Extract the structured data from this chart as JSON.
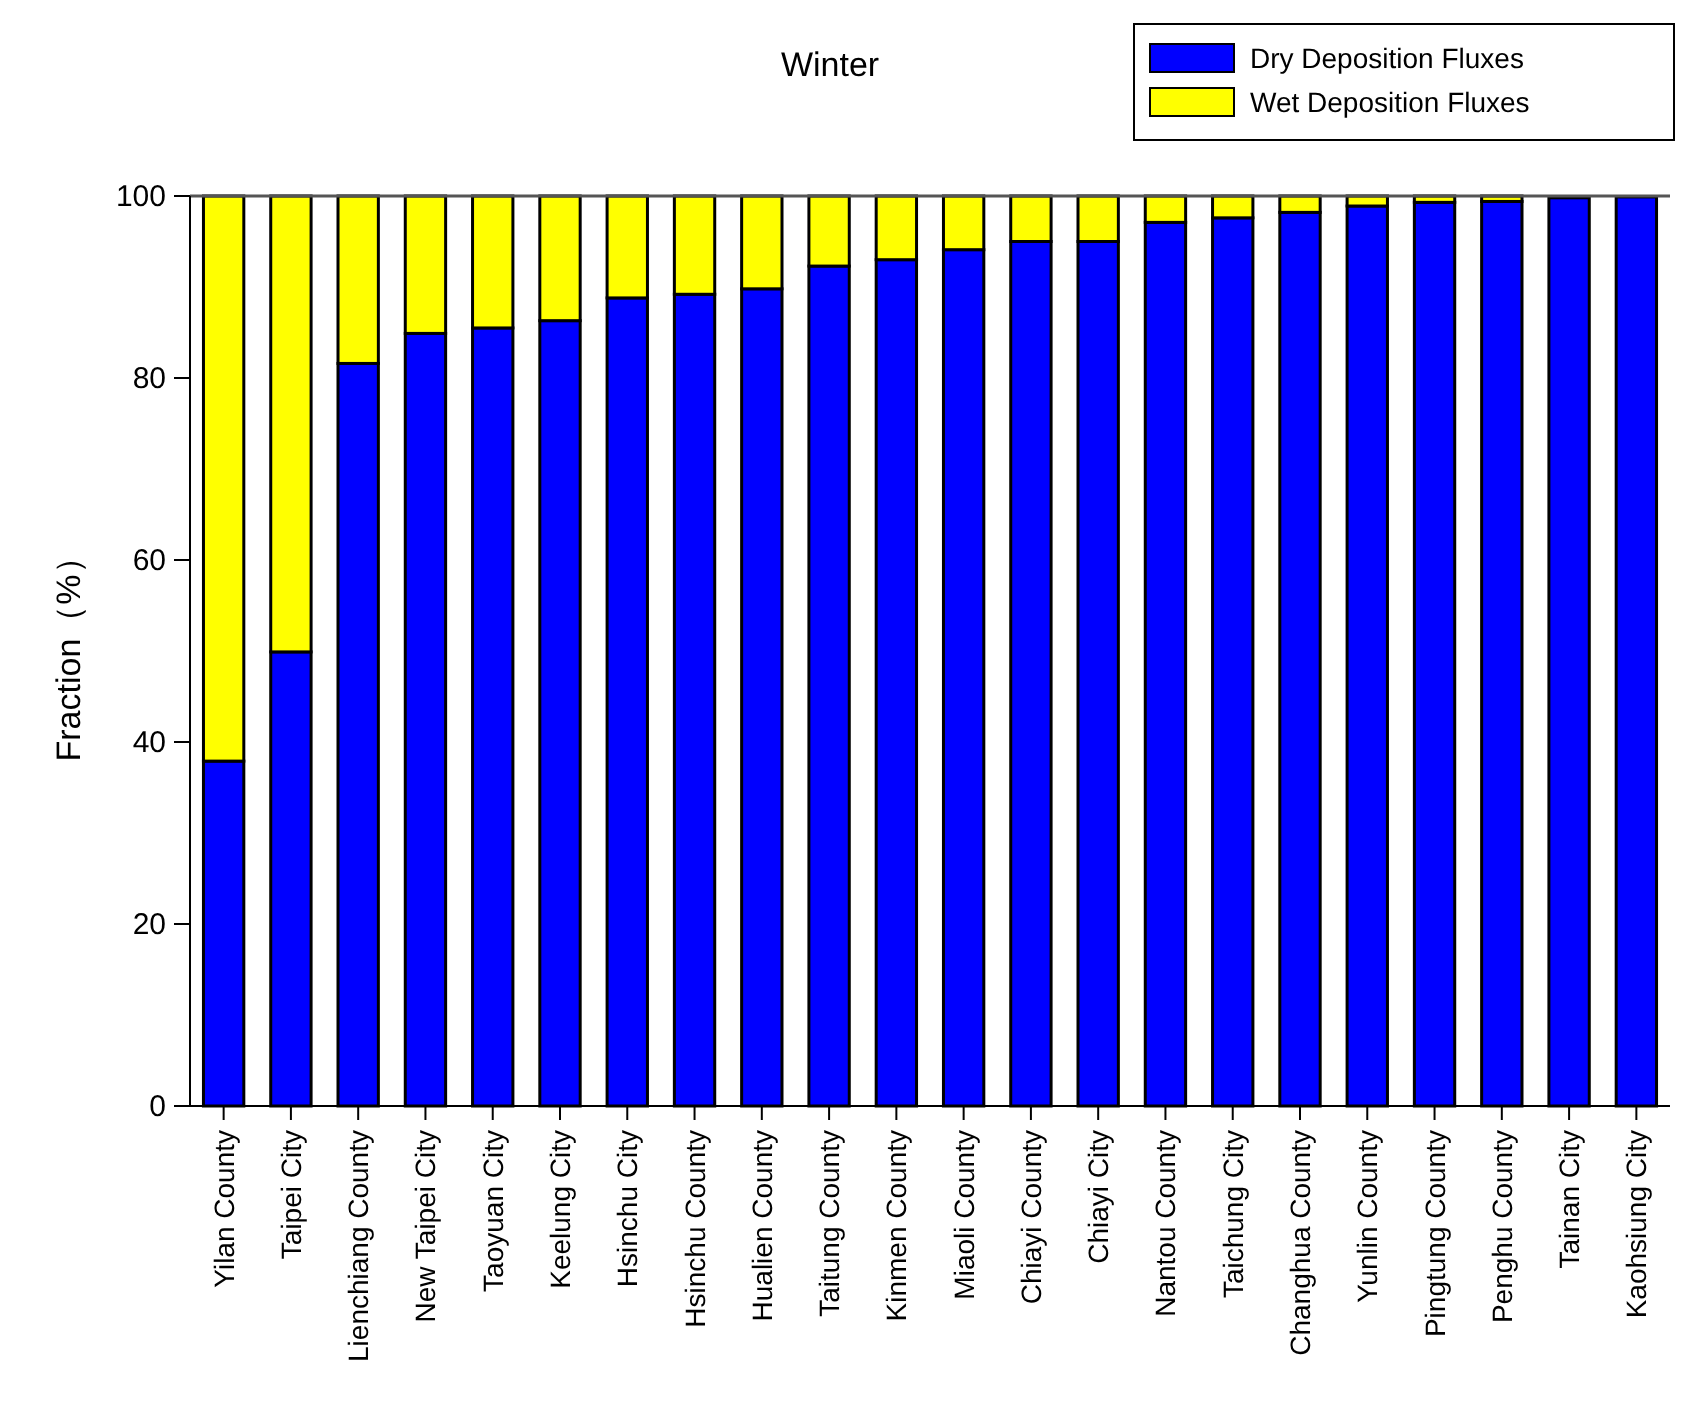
{
  "chart_data": {
    "type": "bar",
    "title": "Winter",
    "ylabel": "Fraction（%）",
    "stacked": true,
    "legend": "top right",
    "ylim": [
      0,
      100
    ],
    "yticks": [
      0,
      20,
      40,
      60,
      80,
      100
    ],
    "categories": [
      "Yilan County",
      "Taipei City",
      "Lienchiang County",
      "New Taipei City",
      "Taoyuan City",
      "Keelung City",
      "Hsinchu City",
      "Hsinchu County",
      "Hualien County",
      "Taitung County",
      "Kinmen County",
      "Miaoli County",
      "Chiayi County",
      "Chiayi City",
      "Nantou County",
      "Taichung City",
      "Changhua County",
      "Yunlin County",
      "Pingtung County",
      "Penghu County",
      "Tainan City",
      "Kaohsiung City"
    ],
    "series": [
      {
        "name": "Dry Deposition Fluxes",
        "color": "#0000ff",
        "values": [
          37.9,
          49.9,
          81.6,
          84.9,
          85.5,
          86.3,
          88.8,
          89.2,
          89.8,
          92.3,
          93.0,
          94.1,
          95.0,
          95.0,
          97.1,
          97.6,
          98.2,
          98.9,
          99.3,
          99.4,
          99.8,
          99.9
        ]
      },
      {
        "name": "Wet Deposition Fluxes",
        "color": "#ffff00",
        "values": [
          62.1,
          50.1,
          18.4,
          15.1,
          14.5,
          13.7,
          11.2,
          10.8,
          10.2,
          7.7,
          7.0,
          5.9,
          5.0,
          5.0,
          2.9,
          2.4,
          1.8,
          1.1,
          0.7,
          0.6,
          null,
          null
        ]
      }
    ]
  }
}
